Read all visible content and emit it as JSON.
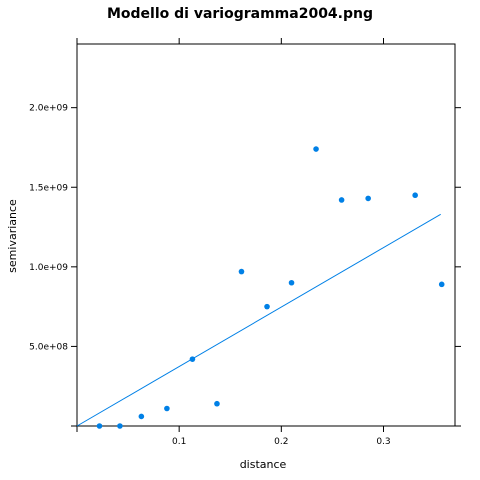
{
  "chart_data": {
    "type": "scatter",
    "title": "Modello di variogramma2004.png",
    "xlabel": "distance",
    "ylabel": "semivariance",
    "xlim": [
      0.0,
      0.37
    ],
    "ylim": [
      0,
      2400000000
    ],
    "x_ticks": [
      0.1,
      0.2,
      0.3
    ],
    "x_tick_labels": [
      "0.1",
      "0.2",
      "0.3"
    ],
    "y_ticks": [
      500000000,
      1000000000,
      1500000000,
      2000000000
    ],
    "y_tick_labels": [
      "5.0e+08",
      "1.0e+09",
      "1.5e+09",
      "2.0e+09"
    ],
    "grid": false,
    "legend": "none",
    "point_color": "#0080e6",
    "line_color": "#0080e6",
    "points": {
      "x": [
        0.022,
        0.042,
        0.063,
        0.088,
        0.113,
        0.137,
        0.161,
        0.186,
        0.21,
        0.234,
        0.259,
        0.285,
        0.331,
        0.357
      ],
      "y": [
        0,
        0,
        60000000,
        110000000,
        420000000,
        140000000,
        970000000,
        750000000,
        900000000,
        1740000000,
        1420000000,
        1430000000,
        1450000000,
        890000000
      ]
    },
    "fitted_line": {
      "x": [
        0.0,
        0.356
      ],
      "y": [
        0,
        1330000000
      ]
    }
  }
}
